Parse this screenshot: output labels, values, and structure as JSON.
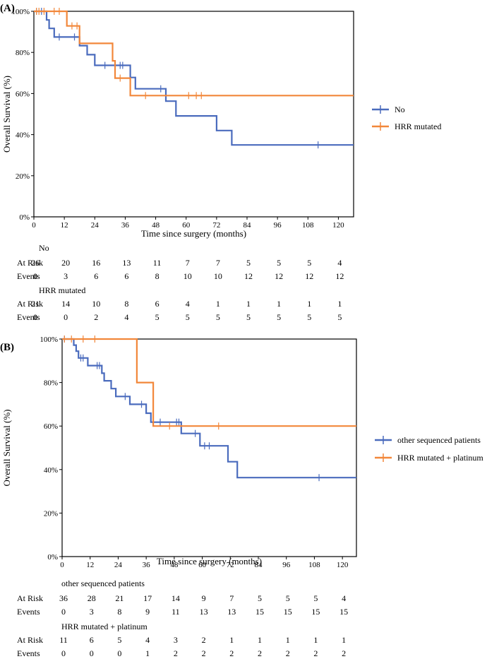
{
  "chart_data": [
    {
      "type": "line",
      "panel_label": "(A)",
      "xlabel": "Time since surgery (months)",
      "ylabel": "Overall Survival (%)",
      "xlim": [
        0,
        126
      ],
      "ylim": [
        0,
        100
      ],
      "x_ticks": [
        0,
        12,
        24,
        36,
        48,
        60,
        72,
        84,
        96,
        108,
        120
      ],
      "y_ticks": [
        0,
        20,
        40,
        60,
        80,
        100
      ],
      "y_tick_labels": [
        "0%",
        "20%",
        "40%",
        "60%",
        "80%",
        "100%"
      ],
      "legend_position": "right",
      "series": [
        {
          "name": "No",
          "color": "#4a6bbd",
          "steps": [
            [
              0,
              100
            ],
            [
              5,
              100
            ],
            [
              5,
              95.8
            ],
            [
              6,
              95.8
            ],
            [
              6,
              91.7
            ],
            [
              8,
              91.7
            ],
            [
              8,
              87.5
            ],
            [
              18,
              87.5
            ],
            [
              18,
              83.3
            ],
            [
              21,
              83.3
            ],
            [
              21,
              78.9
            ],
            [
              24,
              78.9
            ],
            [
              24,
              73.7
            ],
            [
              38,
              73.7
            ],
            [
              38,
              67.8
            ],
            [
              40,
              67.8
            ],
            [
              40,
              62.3
            ],
            [
              52,
              62.3
            ],
            [
              52,
              56.3
            ],
            [
              56,
              56.3
            ],
            [
              56,
              49.1
            ],
            [
              72,
              49.1
            ],
            [
              72,
              42.0
            ],
            [
              78,
              42.0
            ],
            [
              78,
              35.0
            ],
            [
              126,
              35.0
            ]
          ],
          "censors": [
            [
              1,
              100
            ],
            [
              3,
              100
            ],
            [
              10,
              87.5
            ],
            [
              16,
              87.5
            ],
            [
              28,
              73.7
            ],
            [
              34,
              73.7
            ],
            [
              35,
              73.7
            ],
            [
              50,
              62.3
            ],
            [
              112,
              35.0
            ]
          ]
        },
        {
          "name": "HRR mutated",
          "color": "#f2873a",
          "steps": [
            [
              0,
              100
            ],
            [
              13,
              100
            ],
            [
              13,
              92.9
            ],
            [
              18,
              92.9
            ],
            [
              18,
              84.4
            ],
            [
              31,
              84.4
            ],
            [
              31,
              75.9
            ],
            [
              32,
              75.9
            ],
            [
              32,
              67.5
            ],
            [
              38,
              67.5
            ],
            [
              38,
              59.0
            ],
            [
              126,
              59.0
            ]
          ],
          "censors": [
            [
              1,
              100
            ],
            [
              2,
              100
            ],
            [
              4,
              100
            ],
            [
              8,
              100
            ],
            [
              10,
              100
            ],
            [
              15,
              92.9
            ],
            [
              17,
              92.9
            ],
            [
              34,
              67.5
            ],
            [
              44,
              59.0
            ],
            [
              61,
              59.0
            ],
            [
              64,
              59.0
            ],
            [
              66,
              59.0
            ]
          ]
        }
      ],
      "risk_table": {
        "groups": [
          {
            "name": "No",
            "at_risk": [
              26,
              20,
              16,
              13,
              11,
              7,
              7,
              5,
              5,
              5,
              4
            ],
            "events": [
              0,
              3,
              6,
              6,
              8,
              10,
              10,
              12,
              12,
              12,
              12
            ]
          },
          {
            "name": "HRR mutated",
            "at_risk": [
              21,
              14,
              10,
              8,
              6,
              4,
              1,
              1,
              1,
              1,
              1
            ],
            "events": [
              0,
              0,
              2,
              4,
              5,
              5,
              5,
              5,
              5,
              5,
              5
            ]
          }
        ],
        "at_risk_label": "At Risk",
        "events_label": "Events"
      }
    },
    {
      "type": "line",
      "panel_label": "(B)",
      "xlabel": "Time since surgery (months)",
      "ylabel": "Overall Survival (%)",
      "xlim": [
        0,
        126
      ],
      "ylim": [
        0,
        100
      ],
      "x_ticks": [
        0,
        12,
        24,
        36,
        48,
        60,
        72,
        84,
        96,
        108,
        120
      ],
      "y_ticks": [
        0,
        20,
        40,
        60,
        80,
        100
      ],
      "y_tick_labels": [
        "0%",
        "20%",
        "40%",
        "60%",
        "80%",
        "100%"
      ],
      "legend_position": "right",
      "series": [
        {
          "name": "other sequenced patients",
          "color": "#4a6bbd",
          "steps": [
            [
              0,
              100
            ],
            [
              5,
              100
            ],
            [
              5,
              97.2
            ],
            [
              6,
              97.2
            ],
            [
              6,
              94.4
            ],
            [
              7,
              94.4
            ],
            [
              7,
              91.3
            ],
            [
              11,
              91.3
            ],
            [
              11,
              87.8
            ],
            [
              17,
              87.8
            ],
            [
              17,
              84.3
            ],
            [
              18,
              84.3
            ],
            [
              18,
              80.8
            ],
            [
              21,
              80.8
            ],
            [
              21,
              77.2
            ],
            [
              23,
              77.2
            ],
            [
              23,
              73.6
            ],
            [
              29,
              73.6
            ],
            [
              29,
              70.0
            ],
            [
              36,
              70.0
            ],
            [
              36,
              65.9
            ],
            [
              38,
              65.9
            ],
            [
              38,
              61.8
            ],
            [
              51,
              61.8
            ],
            [
              51,
              56.6
            ],
            [
              59,
              56.6
            ],
            [
              59,
              50.9
            ],
            [
              71,
              50.9
            ],
            [
              71,
              43.6
            ],
            [
              75,
              43.6
            ],
            [
              75,
              36.3
            ],
            [
              126,
              36.3
            ]
          ],
          "censors": [
            [
              1,
              100
            ],
            [
              8,
              91.3
            ],
            [
              9,
              91.3
            ],
            [
              15,
              87.8
            ],
            [
              16,
              87.8
            ],
            [
              27,
              73.6
            ],
            [
              34,
              70.0
            ],
            [
              42,
              61.8
            ],
            [
              49,
              61.8
            ],
            [
              50,
              61.8
            ],
            [
              57,
              56.6
            ],
            [
              61,
              50.9
            ],
            [
              63,
              50.9
            ],
            [
              110,
              36.3
            ]
          ]
        },
        {
          "name": "HRR mutated + platinum",
          "color": "#f2873a",
          "steps": [
            [
              0,
              100
            ],
            [
              32,
              100
            ],
            [
              32,
              80.0
            ],
            [
              39,
              80.0
            ],
            [
              39,
              60.0
            ],
            [
              126,
              60.0
            ]
          ],
          "censors": [
            [
              1,
              100
            ],
            [
              4,
              100
            ],
            [
              9,
              100
            ],
            [
              14,
              100
            ],
            [
              46,
              60.0
            ],
            [
              67,
              60.0
            ]
          ]
        }
      ],
      "risk_table": {
        "groups": [
          {
            "name": "other sequenced patients",
            "at_risk": [
              36,
              28,
              21,
              17,
              14,
              9,
              7,
              5,
              5,
              5,
              4
            ],
            "events": [
              0,
              3,
              8,
              9,
              11,
              13,
              13,
              15,
              15,
              15,
              15
            ]
          },
          {
            "name": "HRR mutated + platinum",
            "at_risk": [
              11,
              6,
              5,
              4,
              3,
              2,
              1,
              1,
              1,
              1,
              1
            ],
            "events": [
              0,
              0,
              0,
              1,
              2,
              2,
              2,
              2,
              2,
              2,
              2
            ]
          }
        ],
        "at_risk_label": "At Risk",
        "events_label": "Events"
      }
    }
  ]
}
